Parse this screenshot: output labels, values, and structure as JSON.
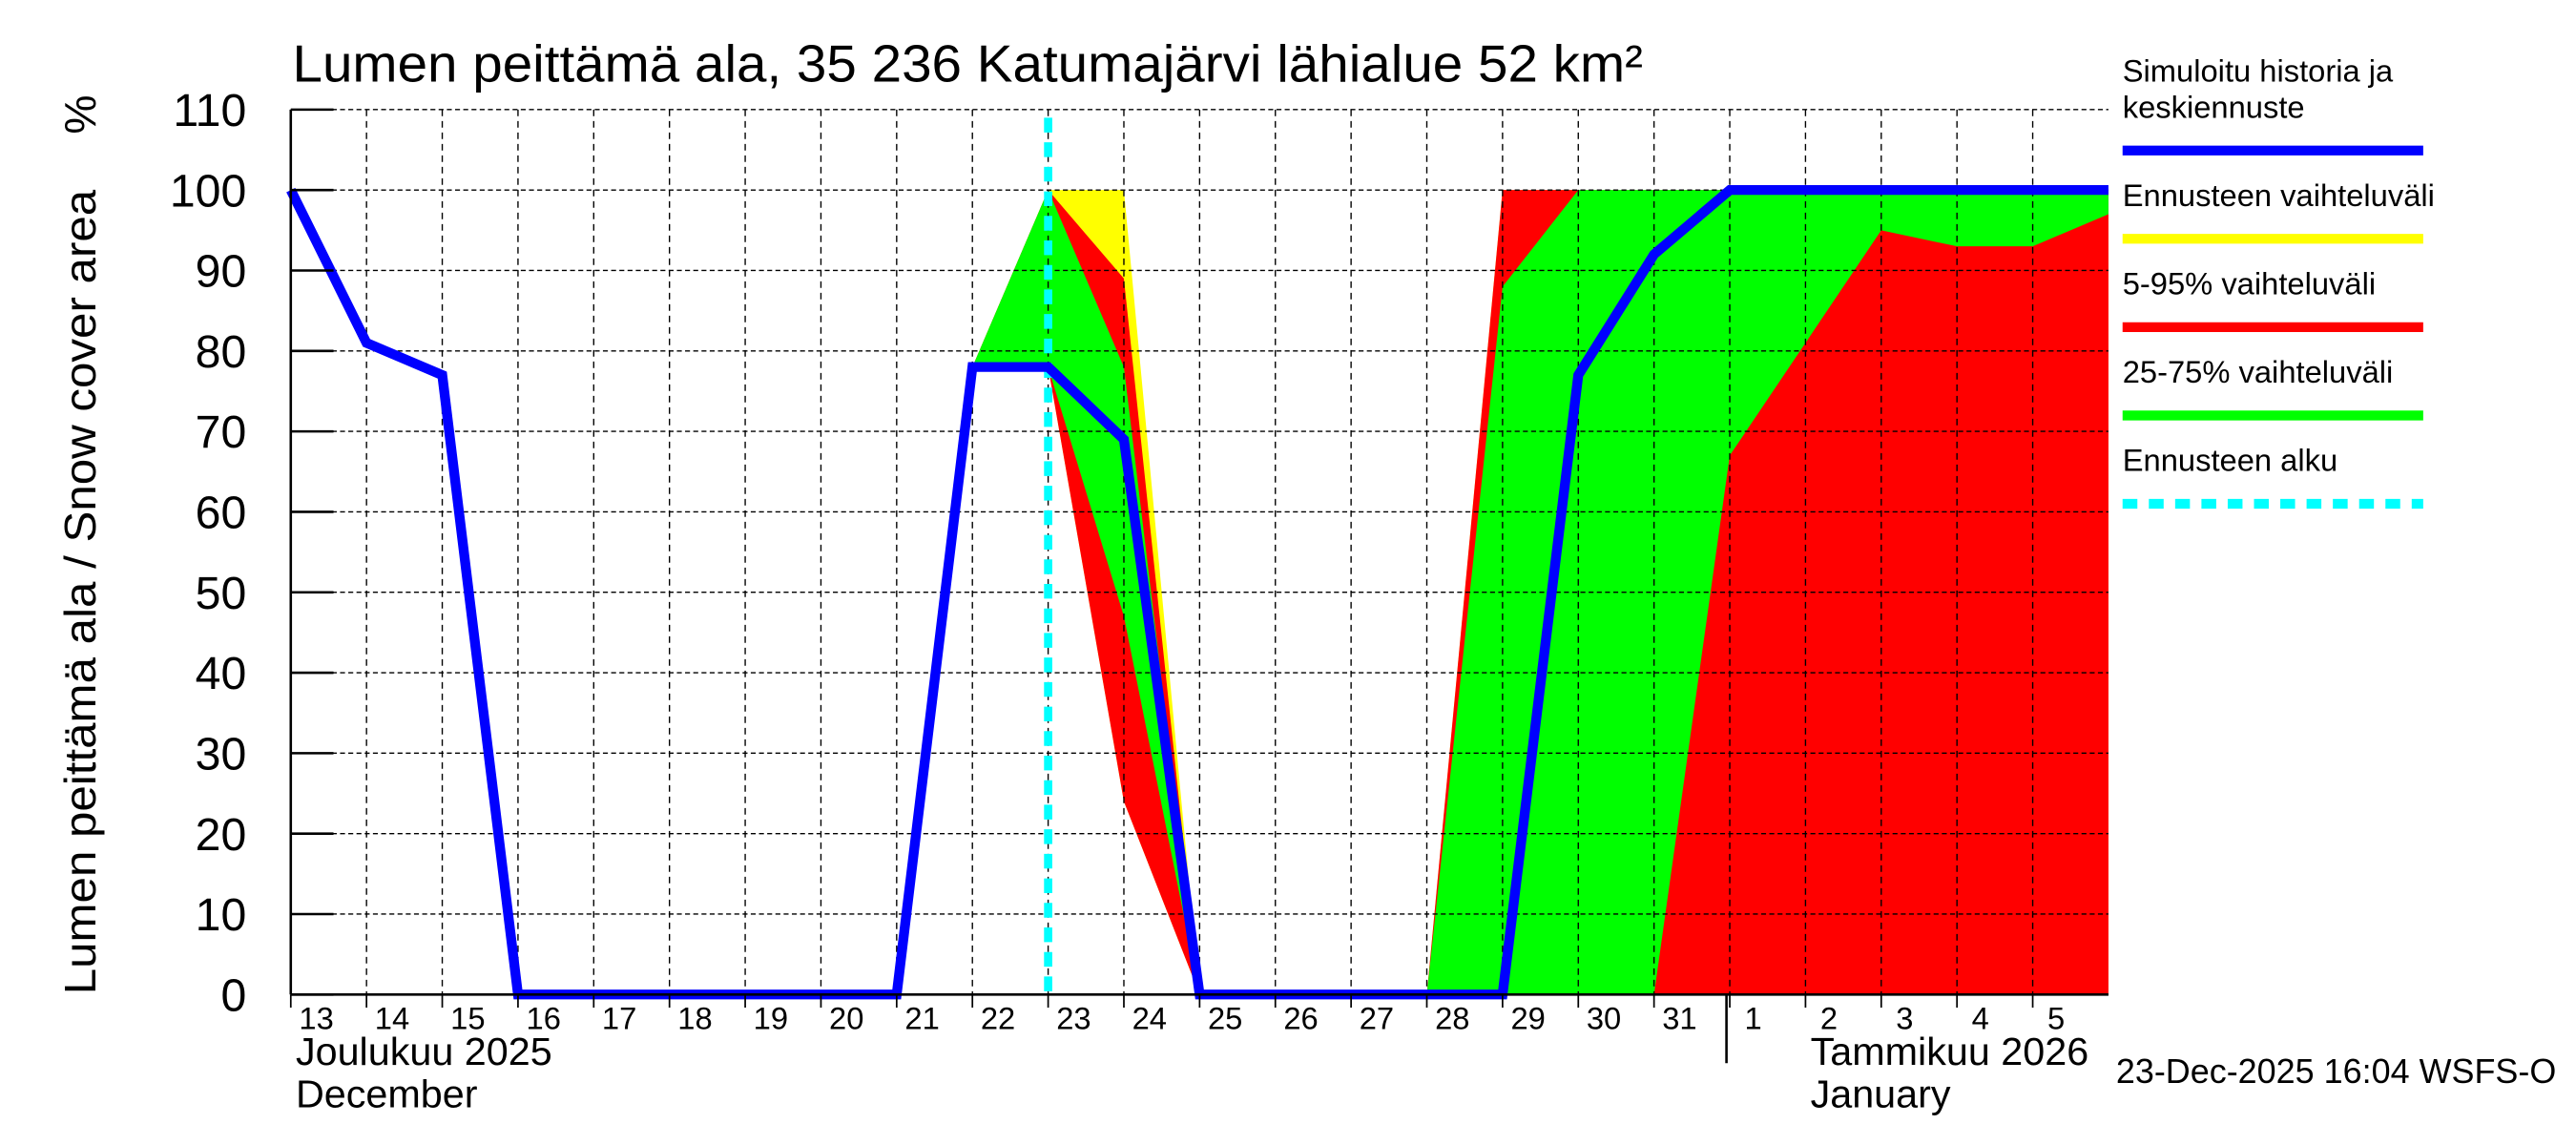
{
  "chart_data": {
    "type": "area",
    "title": "Lumen peittämä ala, 35 236 Katumajärvi lähialue 52 km²",
    "ylabel": "Lumen peittämä ala / Snow cover area",
    "yunit": "%",
    "ylim": [
      0,
      110
    ],
    "yticks": [
      0,
      10,
      20,
      30,
      40,
      50,
      60,
      70,
      80,
      90,
      100,
      110
    ],
    "xlim": [
      "2025-12-13",
      "2026-01-06"
    ],
    "xtick_labels": [
      "13",
      "14",
      "15",
      "16",
      "17",
      "18",
      "19",
      "20",
      "21",
      "22",
      "23",
      "24",
      "25",
      "26",
      "27",
      "28",
      "29",
      "30",
      "31",
      "1",
      "2",
      "3",
      "4",
      "5"
    ],
    "month_labels": [
      {
        "fi": "Joulukuu  2025",
        "en": "December"
      },
      {
        "fi": "Tammikuu  2026",
        "en": "January"
      }
    ],
    "grid": true,
    "legend_placement": "right",
    "forecast_start": "2025-12-23",
    "timestamp": "23-Dec-2025 16:04 WSFS-O",
    "colors": {
      "median": "#0000ff",
      "ensemble": "#ffff00",
      "p5_95": "#ff0000",
      "p25_75": "#00ff00",
      "forecast_start": "#00ffff"
    },
    "legend": [
      {
        "label": "Simuloitu historia ja keskiennuste",
        "lines": [
          "Simuloitu historia ja",
          "keskiennuste"
        ],
        "color": "#0000ff",
        "style": "solid"
      },
      {
        "label": "Ennusteen vaihteluväli",
        "lines": [
          "Ennusteen vaihteluväli"
        ],
        "color": "#ffff00",
        "style": "solid"
      },
      {
        "label": "5-95% vaihteluväli",
        "lines": [
          "5-95% vaihteluväli"
        ],
        "color": "#ff0000",
        "style": "solid"
      },
      {
        "label": "25-75% vaihteluväli",
        "lines": [
          "25-75% vaihteluväli"
        ],
        "color": "#00ff00",
        "style": "solid"
      },
      {
        "label": "Ennusteen alku",
        "lines": [
          "Ennusteen alku"
        ],
        "color": "#00ffff",
        "style": "dashed"
      }
    ],
    "bands": [
      {
        "name": "Ennusteen vaihteluväli",
        "color": "#ffff00",
        "segments": [
          [
            [
              "2025-12-22",
              78,
              78
            ],
            [
              "2025-12-23",
              78,
              100
            ],
            [
              "2025-12-24",
              24,
              100
            ],
            [
              "2025-12-25",
              0,
              0
            ]
          ],
          [
            [
              "2025-12-28",
              0,
              0
            ],
            [
              "2025-12-29",
              0,
              100
            ],
            [
              "2025-12-30",
              0,
              100
            ],
            [
              "2025-12-31",
              0,
              100
            ],
            [
              "2026-01-01",
              0,
              100
            ],
            [
              "2026-01-06",
              0,
              100
            ]
          ]
        ]
      },
      {
        "name": "5-95% vaihteluväli",
        "color": "#ff0000",
        "segments": [
          [
            [
              "2025-12-22",
              78,
              78
            ],
            [
              "2025-12-23",
              78,
              100
            ],
            [
              "2025-12-24",
              24,
              89
            ],
            [
              "2025-12-25",
              0,
              0
            ]
          ],
          [
            [
              "2025-12-28",
              0,
              0
            ],
            [
              "2025-12-29",
              0,
              100
            ],
            [
              "2025-12-30",
              0,
              100
            ],
            [
              "2025-12-31",
              0,
              100
            ],
            [
              "2026-01-01",
              0,
              100
            ],
            [
              "2026-01-06",
              0,
              100
            ]
          ]
        ]
      },
      {
        "name": "25-75% vaihteluväli",
        "color": "#00ff00",
        "segments": [
          [
            [
              "2025-12-22",
              78,
              78
            ],
            [
              "2025-12-23",
              78,
              100
            ],
            [
              "2025-12-24",
              47,
              78
            ],
            [
              "2025-12-25",
              0,
              0
            ]
          ],
          [
            [
              "2025-12-28",
              0,
              0
            ],
            [
              "2025-12-29",
              0,
              88
            ],
            [
              "2025-12-30",
              0,
              100
            ],
            [
              "2025-12-31",
              0,
              100
            ],
            [
              "2026-01-01",
              67,
              100
            ],
            [
              "2026-01-02",
              81,
              100
            ],
            [
              "2026-01-03",
              95,
              100
            ],
            [
              "2026-01-04",
              93,
              100
            ],
            [
              "2026-01-05",
              93,
              100
            ],
            [
              "2026-01-06",
              97,
              100
            ]
          ]
        ]
      }
    ],
    "series": [
      {
        "name": "Simuloitu historia ja keskiennuste",
        "color": "#0000ff",
        "x": [
          "2025-12-13",
          "2025-12-14",
          "2025-12-15",
          "2025-12-16",
          "2025-12-21",
          "2025-12-22",
          "2025-12-23",
          "2025-12-24",
          "2025-12-25",
          "2025-12-29",
          "2025-12-30",
          "2025-12-31",
          "2026-01-01",
          "2026-01-06"
        ],
        "y": [
          100,
          81,
          77,
          0,
          0,
          78,
          78,
          69,
          0,
          0,
          77,
          92,
          100,
          100
        ]
      }
    ]
  }
}
